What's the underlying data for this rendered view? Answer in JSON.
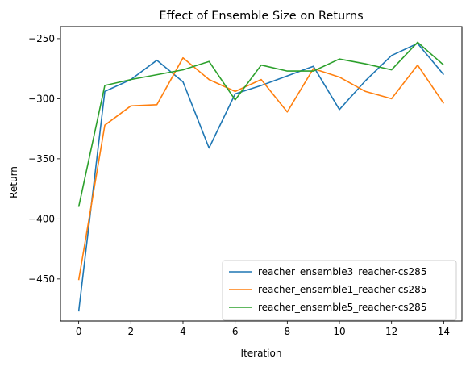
{
  "chart_data": {
    "type": "line",
    "title": "Effect of Ensemble Size on Returns",
    "xlabel": "Iteration",
    "ylabel": "Return",
    "xlim": [
      -0.7,
      14.7
    ],
    "ylim": [
      -485,
      -240
    ],
    "xticks": [
      0,
      2,
      4,
      6,
      8,
      10,
      12,
      14
    ],
    "yticks": [
      -450,
      -400,
      -350,
      -300,
      -250
    ],
    "grid": false,
    "legend_position": "lower-right",
    "x": [
      0,
      1,
      2,
      3,
      4,
      5,
      6,
      7,
      8,
      9,
      10,
      11,
      12,
      13,
      14
    ],
    "series": [
      {
        "name": "reacher_ensemble3_reacher-cs285",
        "color": "#1f77b4",
        "values": [
          -477,
          -294,
          -284,
          -268,
          -286,
          -341,
          -296,
          -289,
          -281,
          -273,
          -309,
          -285,
          -264,
          -254,
          -280
        ]
      },
      {
        "name": "reacher_ensemble1_reacher-cs285",
        "color": "#ff7f0e",
        "values": [
          -451,
          -322,
          -306,
          -305,
          -266,
          -284,
          -294,
          -284,
          -311,
          -275,
          -282,
          -294,
          -300,
          -272,
          -304
        ]
      },
      {
        "name": "reacher_ensemble5_reacher-cs285",
        "color": "#2ca02c",
        "values": [
          -390,
          -289,
          -284,
          -280,
          -276,
          -269,
          -301,
          -272,
          -277,
          -277,
          -267,
          -271,
          -276,
          -253,
          -272
        ]
      }
    ]
  }
}
